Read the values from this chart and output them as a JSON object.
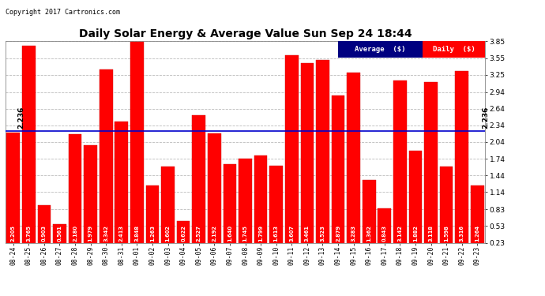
{
  "title": "Daily Solar Energy & Average Value Sun Sep 24 18:44",
  "copyright": "Copyright 2017 Cartronics.com",
  "average_value": 2.236,
  "average_label": "2.236",
  "categories": [
    "08-24",
    "08-25",
    "08-26",
    "08-27",
    "08-28",
    "08-29",
    "08-30",
    "08-31",
    "09-01",
    "09-02",
    "09-03",
    "09-04",
    "09-05",
    "09-06",
    "09-07",
    "09-08",
    "09-09",
    "09-10",
    "09-11",
    "09-12",
    "09-13",
    "09-14",
    "09-15",
    "09-16",
    "09-17",
    "09-18",
    "09-19",
    "09-20",
    "09-21",
    "09-22",
    "09-23"
  ],
  "values": [
    2.205,
    3.765,
    0.903,
    0.561,
    2.18,
    1.979,
    3.342,
    2.413,
    3.848,
    1.263,
    1.602,
    0.622,
    2.527,
    2.192,
    1.64,
    1.745,
    1.799,
    1.613,
    3.607,
    3.461,
    3.523,
    2.879,
    3.283,
    1.362,
    0.843,
    3.142,
    1.882,
    3.118,
    1.598,
    3.316,
    1.264
  ],
  "bar_color": "#ff0000",
  "bar_edge_color": "#cc0000",
  "avg_line_color": "#0000cc",
  "background_color": "#ffffff",
  "plot_bg_color": "#ffffff",
  "grid_color": "#bbbbbb",
  "ylim_min": 0.23,
  "ylim_max": 3.85,
  "yticks": [
    0.23,
    0.53,
    0.83,
    1.14,
    1.44,
    1.74,
    2.04,
    2.34,
    2.64,
    2.94,
    3.25,
    3.55,
    3.85
  ],
  "legend_avg_bg": "#000080",
  "legend_daily_bg": "#ff0000",
  "legend_avg_text": "Average  ($)",
  "legend_daily_text": "Daily  ($)",
  "figwidth": 6.9,
  "figheight": 3.75,
  "dpi": 100
}
